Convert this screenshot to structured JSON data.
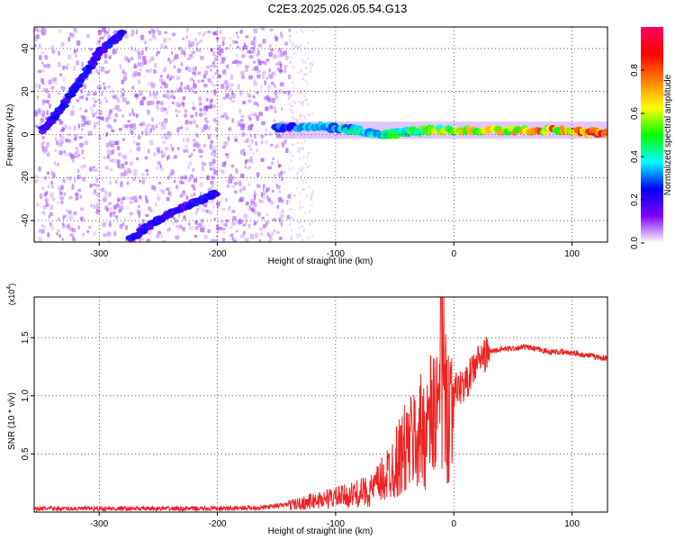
{
  "title": "C2E3.2025.026.05.54.G13",
  "chart_data": [
    {
      "type": "heatmap",
      "name": "spectrogram",
      "xlabel": "Height of straight line (km)",
      "ylabel": "Frequency (Hz)",
      "xlim": [
        -355,
        130
      ],
      "ylim": [
        -50,
        50
      ],
      "xticks": [
        -300,
        -200,
        -100,
        0,
        100
      ],
      "yticks": [
        -40,
        -20,
        0,
        20,
        40
      ],
      "colorbar": {
        "label": "Normalized spectral amplitude",
        "range": [
          0,
          1
        ],
        "ticks": [
          0.0,
          0.2,
          0.4,
          0.6,
          0.8
        ],
        "colormap": [
          "#ffffff",
          "#7f00ff",
          "#0000ff",
          "#00ffff",
          "#00ff00",
          "#ffff00",
          "#ff8000",
          "#ff0000",
          "#ff0066"
        ]
      },
      "ridges": [
        {
          "x": [
            -348,
            -338,
            -325,
            -312,
            -300,
            -290,
            -280
          ],
          "y": [
            2,
            8,
            18,
            28,
            38,
            43,
            47
          ],
          "amplitude": 0.25
        },
        {
          "x": [
            -275,
            -262,
            -250,
            -238,
            -225,
            -212,
            -200
          ],
          "y": [
            -49,
            -44,
            -40,
            -36,
            -33,
            -30,
            -27
          ],
          "amplitude": 0.25
        },
        {
          "x": [
            -150,
            -125,
            -100,
            -80,
            -60,
            -40,
            -20,
            0,
            20,
            60,
            90,
            110,
            130
          ],
          "y": [
            3,
            4,
            3,
            2,
            0,
            1,
            2,
            2,
            2,
            2,
            2,
            1,
            1
          ],
          "amplitude": 0.6
        }
      ],
      "grid": true
    },
    {
      "type": "line",
      "name": "snr",
      "xlabel": "Height of straight line (km)",
      "ylabel": "SNR (10 * v/v)",
      "yscale_label": "(x10^4)",
      "xlim": [
        -355,
        130
      ],
      "ylim": [
        0,
        1.85
      ],
      "xticks": [
        -300,
        -200,
        -100,
        0,
        100
      ],
      "yticks": [
        0.5,
        1.0,
        1.5
      ],
      "series_color": "#ee2222",
      "x": [
        -355,
        -300,
        -200,
        -160,
        -130,
        -110,
        -90,
        -70,
        -60,
        -50,
        -40,
        -30,
        -20,
        -15,
        -10,
        -5,
        0,
        10,
        20,
        30,
        40,
        60,
        80,
        100,
        130
      ],
      "y": [
        0.03,
        0.03,
        0.03,
        0.04,
        0.08,
        0.12,
        0.15,
        0.2,
        0.3,
        0.45,
        0.6,
        0.7,
        0.85,
        0.95,
        0.9,
        1.0,
        1.05,
        1.1,
        1.3,
        1.38,
        1.4,
        1.42,
        1.38,
        1.37,
        1.32
      ],
      "grid": true
    }
  ]
}
